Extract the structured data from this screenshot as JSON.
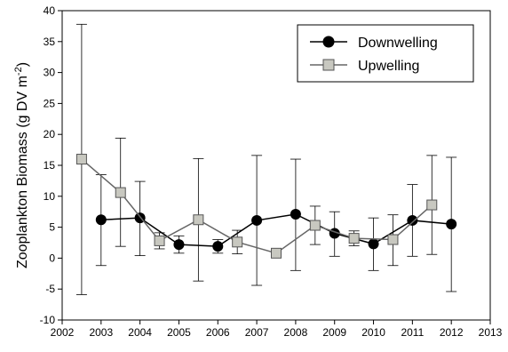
{
  "chart_data": {
    "type": "line",
    "title": "",
    "xlabel": "",
    "ylabel": "Zooplankton Biomass (g DV m",
    "ylabel_superscript": "-2",
    "ylabel_close": ")",
    "xlim": [
      2002,
      2013
    ],
    "ylim": [
      -10,
      40
    ],
    "x_ticks": [
      2002,
      2003,
      2004,
      2005,
      2006,
      2007,
      2008,
      2009,
      2010,
      2011,
      2012,
      2013
    ],
    "y_ticks": [
      -10,
      -5,
      0,
      5,
      10,
      15,
      20,
      25,
      30,
      35,
      40
    ],
    "grid": false,
    "legend_position": "top-right",
    "series": [
      {
        "name": "Downwelling",
        "marker": "circle",
        "marker_color": "#000000",
        "line_color": "#000000",
        "x": [
          2003,
          2004,
          2005,
          2006,
          2007,
          2008,
          2009,
          2010,
          2011,
          2012
        ],
        "y": [
          6.2,
          6.5,
          2.2,
          1.9,
          6.1,
          7.1,
          4.0,
          2.3,
          6.1,
          5.5
        ],
        "err_low": [
          -1.2,
          0.4,
          0.8,
          0.8,
          -4.4,
          -2.0,
          0.3,
          -2.0,
          0.3,
          -5.4
        ],
        "err_high": [
          13.5,
          12.4,
          3.6,
          3.0,
          16.6,
          16.0,
          7.5,
          6.5,
          11.9,
          16.3
        ]
      },
      {
        "name": "Upwelling",
        "marker": "square",
        "marker_color": "#c8c8c0",
        "line_color": "#666666",
        "x": [
          2002.5,
          2003.5,
          2004.5,
          2005.5,
          2006.5,
          2007.5,
          2008.5,
          2009.5,
          2010.5,
          2011.5
        ],
        "y": [
          16.0,
          10.6,
          2.8,
          6.2,
          2.6,
          0.8,
          5.3,
          3.2,
          3.0,
          8.6
        ],
        "err_low": [
          -5.9,
          1.9,
          1.5,
          -3.7,
          0.7,
          0.8,
          2.2,
          2.0,
          -1.2,
          0.6
        ],
        "err_high": [
          37.8,
          19.4,
          4.1,
          16.1,
          4.5,
          0.8,
          8.4,
          4.4,
          7.0,
          16.6
        ]
      }
    ]
  }
}
